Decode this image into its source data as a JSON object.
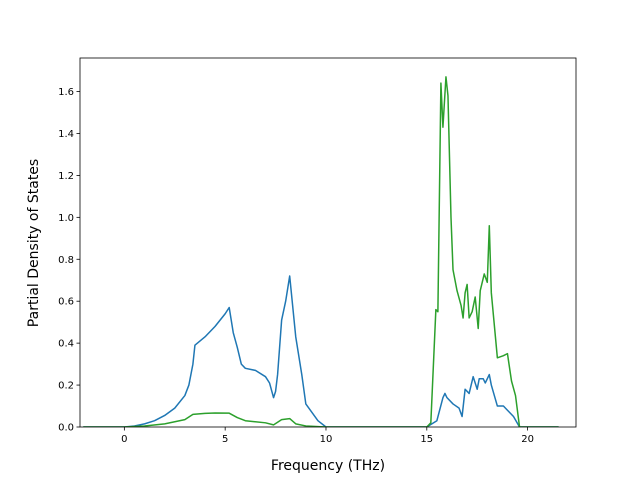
{
  "chart_data": {
    "type": "line",
    "title": "",
    "xlabel": "Frequency (THz)",
    "ylabel": "Partial Density of States",
    "xlim": [
      -2.2,
      22.4
    ],
    "ylim": [
      0.0,
      1.76
    ],
    "xticks": [
      0,
      5,
      10,
      15,
      20
    ],
    "xtick_labels": [
      "0",
      "5",
      "10",
      "15",
      "20"
    ],
    "yticks": [
      0.0,
      0.2,
      0.4,
      0.6,
      0.8,
      1.0,
      1.2,
      1.4,
      1.6
    ],
    "ytick_labels": [
      "0.0",
      "0.2",
      "0.4",
      "0.6",
      "0.8",
      "1.0",
      "1.2",
      "1.4",
      "1.6"
    ],
    "grid": false,
    "series": [
      {
        "color": "#1f77b4",
        "points": [
          [
            -2.0,
            0.0
          ],
          [
            0.0,
            0.0
          ],
          [
            0.5,
            0.005
          ],
          [
            1.0,
            0.015
          ],
          [
            1.5,
            0.03
          ],
          [
            2.0,
            0.055
          ],
          [
            2.5,
            0.09
          ],
          [
            3.0,
            0.15
          ],
          [
            3.2,
            0.2
          ],
          [
            3.4,
            0.3
          ],
          [
            3.5,
            0.39
          ],
          [
            4.0,
            0.43
          ],
          [
            4.5,
            0.48
          ],
          [
            5.0,
            0.54
          ],
          [
            5.2,
            0.57
          ],
          [
            5.4,
            0.45
          ],
          [
            5.6,
            0.38
          ],
          [
            5.8,
            0.3
          ],
          [
            6.0,
            0.28
          ],
          [
            6.5,
            0.27
          ],
          [
            7.0,
            0.24
          ],
          [
            7.2,
            0.21
          ],
          [
            7.4,
            0.14
          ],
          [
            7.5,
            0.17
          ],
          [
            7.6,
            0.25
          ],
          [
            7.8,
            0.51
          ],
          [
            8.0,
            0.6
          ],
          [
            8.2,
            0.72
          ],
          [
            8.5,
            0.43
          ],
          [
            8.8,
            0.25
          ],
          [
            9.0,
            0.11
          ],
          [
            9.3,
            0.07
          ],
          [
            9.6,
            0.03
          ],
          [
            10.0,
            0.0
          ],
          [
            15.0,
            0.0
          ],
          [
            15.5,
            0.03
          ],
          [
            15.8,
            0.14
          ],
          [
            15.9,
            0.16
          ],
          [
            16.0,
            0.14
          ],
          [
            16.3,
            0.11
          ],
          [
            16.6,
            0.09
          ],
          [
            16.75,
            0.05
          ],
          [
            16.9,
            0.18
          ],
          [
            17.1,
            0.16
          ],
          [
            17.3,
            0.24
          ],
          [
            17.5,
            0.18
          ],
          [
            17.6,
            0.23
          ],
          [
            17.8,
            0.23
          ],
          [
            17.9,
            0.21
          ],
          [
            18.1,
            0.25
          ],
          [
            18.2,
            0.2
          ],
          [
            18.5,
            0.1
          ],
          [
            18.8,
            0.1
          ],
          [
            19.0,
            0.08
          ],
          [
            19.3,
            0.05
          ],
          [
            19.6,
            0.0
          ],
          [
            21.5,
            0.0
          ]
        ]
      },
      {
        "color": "#2ca02c",
        "points": [
          [
            -2.0,
            0.0
          ],
          [
            0.0,
            0.0
          ],
          [
            1.0,
            0.005
          ],
          [
            2.0,
            0.015
          ],
          [
            3.0,
            0.035
          ],
          [
            3.4,
            0.06
          ],
          [
            4.0,
            0.065
          ],
          [
            4.5,
            0.067
          ],
          [
            5.2,
            0.066
          ],
          [
            5.6,
            0.045
          ],
          [
            6.0,
            0.03
          ],
          [
            7.0,
            0.02
          ],
          [
            7.4,
            0.01
          ],
          [
            7.8,
            0.035
          ],
          [
            8.2,
            0.04
          ],
          [
            8.5,
            0.015
          ],
          [
            9.0,
            0.005
          ],
          [
            10.0,
            0.0
          ],
          [
            15.0,
            0.0
          ],
          [
            15.2,
            0.02
          ],
          [
            15.45,
            0.56
          ],
          [
            15.55,
            0.55
          ],
          [
            15.7,
            1.64
          ],
          [
            15.8,
            1.43
          ],
          [
            15.95,
            1.67
          ],
          [
            16.05,
            1.58
          ],
          [
            16.2,
            1.0
          ],
          [
            16.3,
            0.75
          ],
          [
            16.5,
            0.65
          ],
          [
            16.7,
            0.58
          ],
          [
            16.8,
            0.52
          ],
          [
            16.9,
            0.64
          ],
          [
            17.0,
            0.68
          ],
          [
            17.1,
            0.52
          ],
          [
            17.25,
            0.55
          ],
          [
            17.4,
            0.62
          ],
          [
            17.55,
            0.47
          ],
          [
            17.65,
            0.65
          ],
          [
            17.85,
            0.73
          ],
          [
            18.0,
            0.69
          ],
          [
            18.1,
            0.96
          ],
          [
            18.2,
            0.64
          ],
          [
            18.5,
            0.33
          ],
          [
            18.8,
            0.34
          ],
          [
            19.0,
            0.35
          ],
          [
            19.2,
            0.22
          ],
          [
            19.4,
            0.15
          ],
          [
            19.6,
            0.0
          ],
          [
            21.5,
            0.0
          ]
        ]
      }
    ]
  }
}
